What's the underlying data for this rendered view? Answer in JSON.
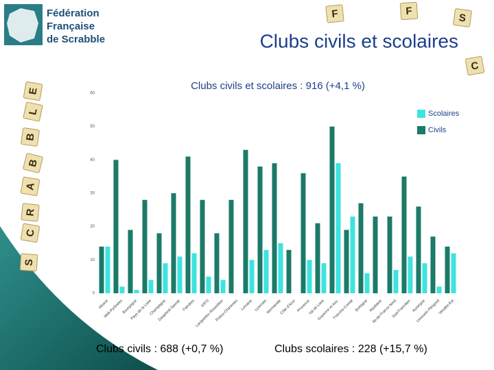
{
  "header": {
    "logo_lines": [
      "Fédération",
      "Française",
      "de Scrabble"
    ],
    "title": "Clubs civils et scolaires"
  },
  "tiles": [
    "E",
    "L",
    "B",
    "B",
    "A",
    "R",
    "C",
    "S",
    "F",
    "F",
    "S",
    "C"
  ],
  "chart_data": {
    "type": "bar",
    "title": "Clubs civils et scolaires : 916 (+4,1 %)",
    "categories": [
      "Alsace",
      "Midi-Pyrénées",
      "Bourgogne",
      "Pays de la Loire",
      "Champagne",
      "Dauphiné-Savoie",
      "Flandres",
      "IDFO",
      "Languedoc-Roussillon",
      "Poitou-Charentes",
      "Lorraine",
      "Lyonnais",
      "Normandie",
      "Côte d'Azur",
      "Provence",
      "Val de Loire",
      "Guyenne et Ass.",
      "Franche-Comté",
      "Bretagne",
      "Aquitaine",
      "Ile-de-France Nord",
      "Sud-Francilien",
      "Auvergne",
      "Limousin-Périgord",
      "Vendée-Est"
    ],
    "series": [
      {
        "name": "Civils",
        "color": "#1b7a68",
        "values": [
          14,
          40,
          19,
          28,
          18,
          30,
          41,
          28,
          18,
          28,
          43,
          38,
          39,
          13,
          36,
          21,
          50,
          19,
          27,
          23,
          23,
          35,
          26,
          17,
          14
        ]
      },
      {
        "name": "Scolaires",
        "color": "#3de3e0",
        "values": [
          14,
          2,
          1,
          4,
          9,
          11,
          12,
          5,
          4,
          0,
          10,
          13,
          15,
          0,
          10,
          9,
          39,
          23,
          6,
          0,
          7,
          11,
          9,
          2,
          12
        ]
      }
    ],
    "ylim": [
      0,
      60
    ],
    "yticks": [
      0,
      10,
      20,
      30,
      40,
      50,
      60
    ],
    "grid": false,
    "legend": "upper right"
  },
  "footer": {
    "civils": "Clubs civils : 688 (+0,7 %)",
    "scolaires": "Clubs scolaires : 228 (+15,7 %)"
  }
}
